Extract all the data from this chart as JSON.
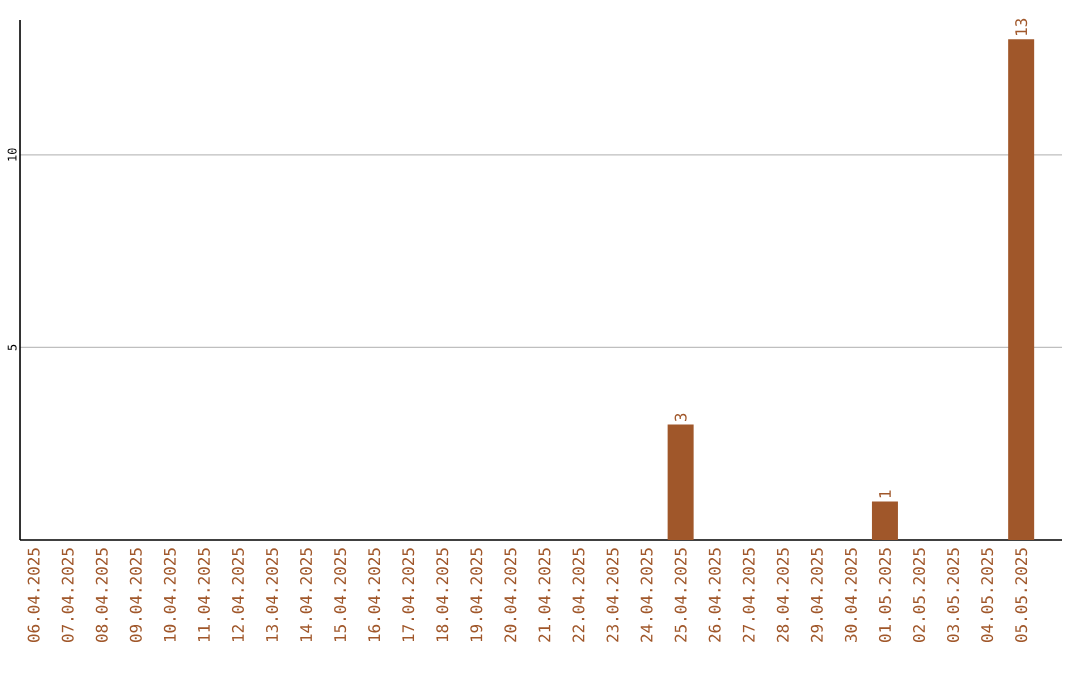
{
  "chart_data": {
    "type": "bar",
    "categories": [
      "06.04.2025",
      "07.04.2025",
      "08.04.2025",
      "09.04.2025",
      "10.04.2025",
      "11.04.2025",
      "12.04.2025",
      "13.04.2025",
      "14.04.2025",
      "15.04.2025",
      "16.04.2025",
      "17.04.2025",
      "18.04.2025",
      "19.04.2025",
      "20.04.2025",
      "21.04.2025",
      "22.04.2025",
      "23.04.2025",
      "24.04.2025",
      "25.04.2025",
      "26.04.2025",
      "27.04.2025",
      "28.04.2025",
      "29.04.2025",
      "30.04.2025",
      "01.05.2025",
      "02.05.2025",
      "03.05.2025",
      "04.05.2025",
      "05.05.2025"
    ],
    "values": [
      0,
      0,
      0,
      0,
      0,
      0,
      0,
      0,
      0,
      0,
      0,
      0,
      0,
      0,
      0,
      0,
      0,
      0,
      0,
      3,
      0,
      0,
      0,
      0,
      0,
      1,
      0,
      0,
      0,
      13
    ],
    "value_labels": [
      null,
      null,
      null,
      null,
      null,
      null,
      null,
      null,
      null,
      null,
      null,
      null,
      null,
      null,
      null,
      null,
      null,
      null,
      null,
      "3",
      null,
      null,
      null,
      null,
      null,
      "1",
      null,
      null,
      null,
      "13"
    ],
    "color": "#a0572a",
    "ylim": [
      0,
      13.5
    ],
    "yticks": [
      5,
      10
    ],
    "grid": "y"
  }
}
